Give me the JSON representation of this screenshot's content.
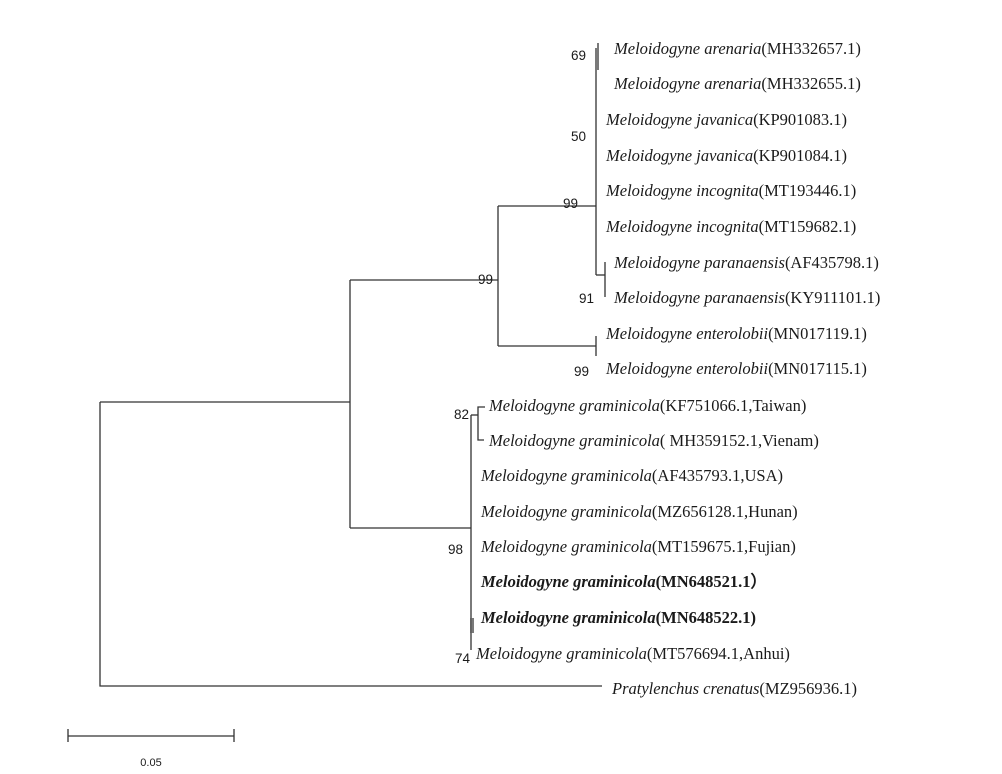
{
  "tree": {
    "taxa": [
      {
        "species": "Meloidogyne arenaria",
        "accession": "(MH332657.1)",
        "bold": false
      },
      {
        "species": "Meloidogyne arenaria",
        "accession": "(MH332655.1)",
        "bold": false
      },
      {
        "species": "Meloidogyne javanica",
        "accession": "(KP901083.1)",
        "bold": false
      },
      {
        "species": "Meloidogyne javanica",
        "accession": "(KP901084.1)",
        "bold": false
      },
      {
        "species": "Meloidogyne incognita",
        "accession": "(MT193446.1)",
        "bold": false
      },
      {
        "species": "Meloidogyne incognita",
        "accession": "(MT159682.1)",
        "bold": false
      },
      {
        "species": "Meloidogyne paranaensis",
        "accession": "(AF435798.1)",
        "bold": false
      },
      {
        "species": "Meloidogyne paranaensis",
        "accession": "(KY911101.1)",
        "bold": false
      },
      {
        "species": "Meloidogyne enterolobii",
        "accession": "(MN017119.1)",
        "bold": false
      },
      {
        "species": "Meloidogyne enterolobii",
        "accession": "(MN017115.1)",
        "bold": false
      },
      {
        "species": "Meloidogyne graminicola",
        "accession": "(KF751066.1,Taiwan)",
        "bold": false
      },
      {
        "species": "Meloidogyne graminicola",
        "accession": "( MH359152.1,Vienam)",
        "bold": false
      },
      {
        "species": "Meloidogyne graminicola",
        "accession": "(AF435793.1,USA)",
        "bold": false
      },
      {
        "species": "Meloidogyne graminicola",
        "accession": "(MZ656128.1,Hunan)",
        "bold": false
      },
      {
        "species": "Meloidogyne graminicola",
        "accession": "(MT159675.1,Fujian)",
        "bold": false
      },
      {
        "species": "Meloidogyne graminicola",
        "accession": "(MN648521.1）",
        "bold": true
      },
      {
        "species": "Meloidogyne graminicola",
        "accession": "(MN648522.1)",
        "bold": true
      },
      {
        "species": "Meloidogyne graminicola",
        "accession": "(MT576694.1,Anhui)",
        "bold": false
      },
      {
        "species": "Pratylenchus crenatus",
        "accession": "(MZ956936.1)",
        "bold": false
      }
    ],
    "bootstrap": [
      "69",
      "50",
      "99",
      "91",
      "99",
      "99",
      "82",
      "98",
      "74"
    ],
    "scale_bar_label": "0.05"
  }
}
